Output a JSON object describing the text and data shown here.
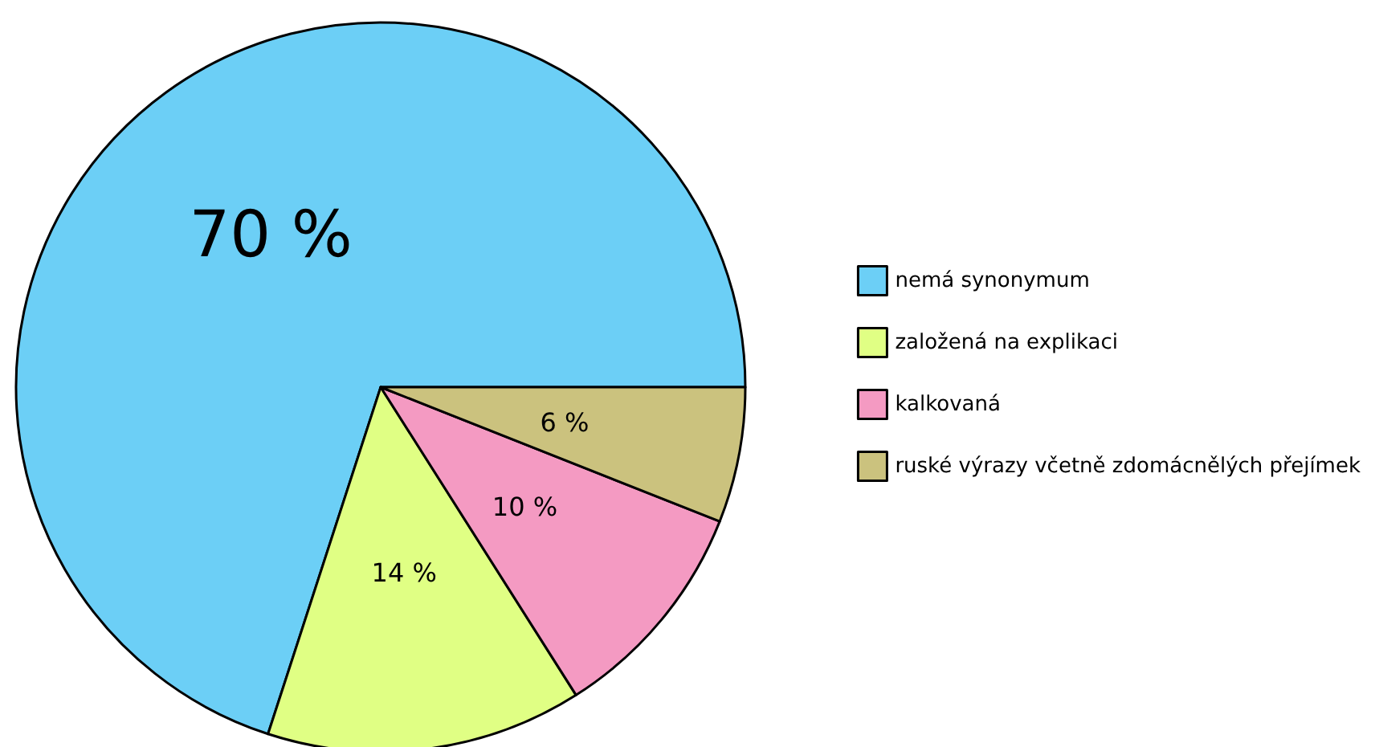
{
  "chart_data": {
    "type": "pie",
    "categories": [
      "nemá synonymum",
      "založená na explikaci",
      "kalkovaná",
      "ruské výrazy včetně zdomácnělých přejímek"
    ],
    "values": [
      70,
      14,
      10,
      6
    ],
    "colors": [
      "#6ccff6",
      "#e0ff84",
      "#f49ac2",
      "#cbc27e"
    ],
    "value_labels": [
      "70 %",
      "14 %",
      "10 %",
      "6 %"
    ],
    "legend": "right"
  }
}
